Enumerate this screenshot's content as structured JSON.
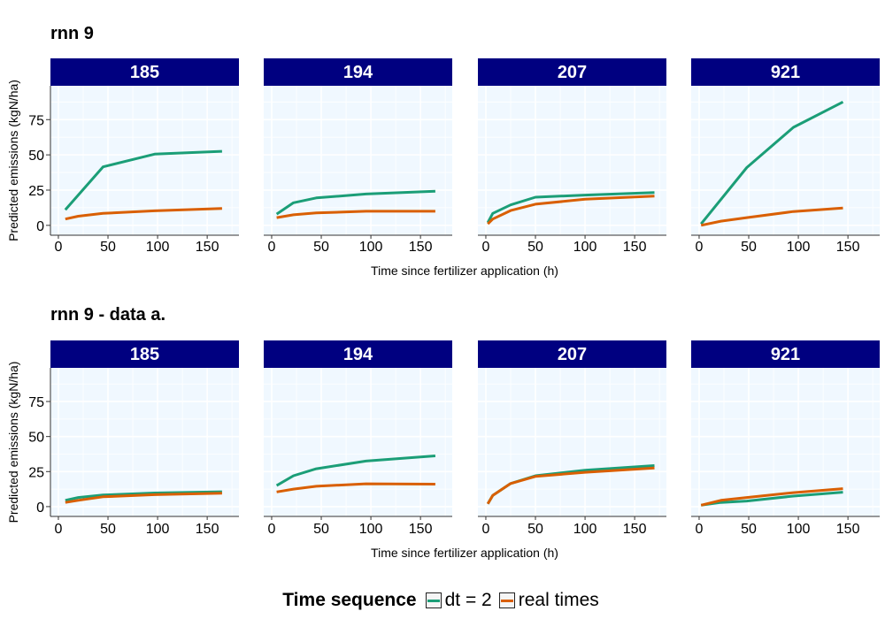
{
  "chart_data": {
    "type": "line",
    "ylabel": "Predicted emissions (kgN/ha)",
    "xlabel": "Time since fertilizer application (h)",
    "xlim": [
      -8,
      182
    ],
    "ylim": [
      -7,
      99
    ],
    "xticks": [
      0,
      50,
      100,
      150
    ],
    "yticks": [
      0,
      25,
      50,
      75
    ],
    "grid": true,
    "colors": {
      "dt = 2": "#1b9e77",
      "real times": "#d95f02",
      "strip": "#000080",
      "panel_bg": "#f0f8ff"
    },
    "legend": {
      "title": "Time sequence",
      "position": "bottom",
      "entries": [
        "dt = 2",
        "real times"
      ]
    },
    "rows": [
      {
        "title": "rnn 9",
        "panels": [
          {
            "id": "185",
            "series": [
              {
                "name": "dt = 2",
                "x": [
                  7,
                  45,
                  97,
                  165
                ],
                "y": [
                  11,
                  41.5,
                  50.5,
                  52.5
                ]
              },
              {
                "name": "real times",
                "x": [
                  7,
                  20,
                  45,
                  97,
                  165
                ],
                "y": [
                  4.5,
                  6.5,
                  8.5,
                  10.3,
                  12
                ]
              }
            ]
          },
          {
            "id": "194",
            "series": [
              {
                "name": "dt = 2",
                "x": [
                  5,
                  22,
                  45,
                  95,
                  165
                ],
                "y": [
                  8,
                  16,
                  19.5,
                  22.2,
                  24.2
                ]
              },
              {
                "name": "real times",
                "x": [
                  5,
                  22,
                  45,
                  95,
                  165
                ],
                "y": [
                  5.5,
                  7.5,
                  8.8,
                  10,
                  10
                ]
              }
            ]
          },
          {
            "id": "207",
            "series": [
              {
                "name": "dt = 2",
                "x": [
                  2,
                  7,
                  25,
                  50,
                  100,
                  170
                ],
                "y": [
                  2,
                  8.5,
                  14.5,
                  20,
                  21.5,
                  23.3
                ]
              },
              {
                "name": "real times",
                "x": [
                  2,
                  7,
                  25,
                  50,
                  100,
                  170
                ],
                "y": [
                  1,
                  4.5,
                  10.5,
                  15,
                  18.5,
                  20.7
                ]
              }
            ]
          },
          {
            "id": "921",
            "series": [
              {
                "name": "dt = 2",
                "x": [
                  2,
                  48,
                  95,
                  145
                ],
                "y": [
                  1,
                  41,
                  69.5,
                  87.5
                ]
              },
              {
                "name": "real times",
                "x": [
                  2,
                  22,
                  48,
                  95,
                  145
                ],
                "y": [
                  0,
                  3,
                  5.5,
                  9.8,
                  12.3
                ]
              }
            ]
          }
        ]
      },
      {
        "title": "rnn 9 - data a.",
        "panels": [
          {
            "id": "185",
            "series": [
              {
                "name": "dt = 2",
                "x": [
                  7,
                  20,
                  45,
                  97,
                  165
                ],
                "y": [
                  4.5,
                  6.5,
                  8.3,
                  9.7,
                  10.6
                ]
              },
              {
                "name": "real times",
                "x": [
                  7,
                  20,
                  45,
                  97,
                  165
                ],
                "y": [
                  3,
                  4.5,
                  7,
                  8.5,
                  9.5
                ]
              }
            ]
          },
          {
            "id": "194",
            "series": [
              {
                "name": "dt = 2",
                "x": [
                  5,
                  22,
                  45,
                  95,
                  165
                ],
                "y": [
                  15,
                  22,
                  27,
                  32.5,
                  36.2
                ]
              },
              {
                "name": "real times",
                "x": [
                  5,
                  22,
                  45,
                  95,
                  165
                ],
                "y": [
                  10.5,
                  12.5,
                  14.5,
                  16.3,
                  16
                ]
              }
            ]
          },
          {
            "id": "207",
            "series": [
              {
                "name": "dt = 2",
                "x": [
                  2,
                  7,
                  25,
                  50,
                  100,
                  170
                ],
                "y": [
                  2,
                  8,
                  16.5,
                  22,
                  26,
                  29.3
                ]
              },
              {
                "name": "real times",
                "x": [
                  2,
                  7,
                  25,
                  50,
                  100,
                  170
                ],
                "y": [
                  2,
                  8,
                  16.5,
                  21.5,
                  24.5,
                  27.5
                ]
              }
            ]
          },
          {
            "id": "921",
            "series": [
              {
                "name": "dt = 2",
                "x": [
                  2,
                  22,
                  48,
                  95,
                  145
                ],
                "y": [
                  1,
                  3,
                  4,
                  7.5,
                  10.3
                ]
              },
              {
                "name": "real times",
                "x": [
                  2,
                  22,
                  48,
                  95,
                  145
                ],
                "y": [
                  1,
                  4.5,
                  6.5,
                  10,
                  12.8
                ]
              }
            ]
          }
        ]
      }
    ]
  }
}
